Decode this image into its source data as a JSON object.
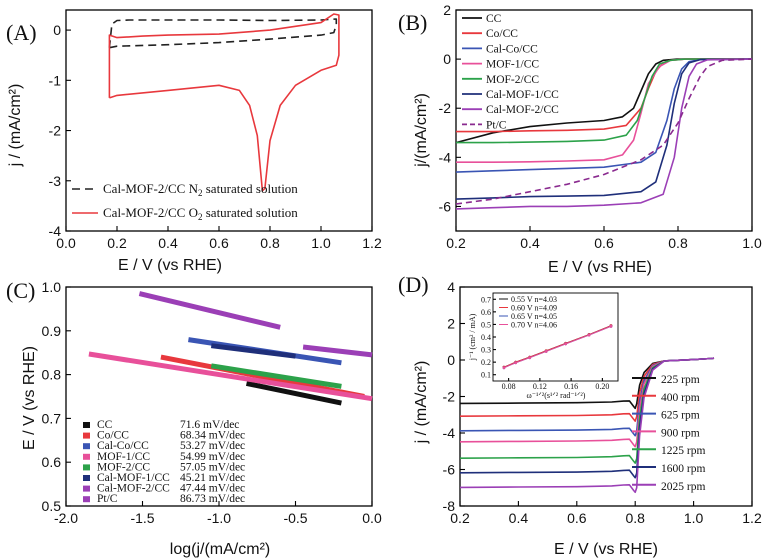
{
  "chart_data": [
    {
      "id": "A",
      "type": "line",
      "panel_label": "(A)",
      "xlabel": "E / V (vs RHE)",
      "ylabel": "j / (mA/cm²)",
      "xlim": [
        0.0,
        1.2
      ],
      "ylim": [
        -4.0,
        0.4
      ],
      "xticks": [
        "0.0",
        "0.2",
        "0.4",
        "0.6",
        "0.8",
        "1.0",
        "1.2"
      ],
      "yticks": [
        "0",
        "-1",
        "-2",
        "-3",
        "-4"
      ],
      "series": [
        {
          "name": "Cal-MOF-2/CC N₂ saturated solution",
          "label_main": "Cal-MOF-2/CC N",
          "label_sub": "2",
          "label_tail": " saturated solution",
          "color": "#222222",
          "dash": "8,5",
          "x": [
            0.17,
            0.2,
            0.4,
            0.6,
            0.8,
            1.0,
            1.05,
            1.06,
            1.06,
            1.0,
            0.8,
            0.6,
            0.4,
            0.25,
            0.2,
            0.18,
            0.17
          ],
          "y": [
            -0.35,
            -0.32,
            -0.29,
            -0.25,
            -0.18,
            -0.1,
            -0.05,
            0.1,
            0.22,
            0.2,
            0.19,
            0.2,
            0.2,
            0.2,
            0.19,
            0.12,
            -0.35
          ]
        },
        {
          "name": "Cal-MOF-2/CC O₂ saturated solution",
          "label_main": "Cal-MOF-2/CC O",
          "label_sub": "2",
          "label_tail": " saturated solution",
          "color": "#e8383d",
          "dash": "",
          "x": [
            0.17,
            0.2,
            0.4,
            0.6,
            0.68,
            0.72,
            0.75,
            0.77,
            0.78,
            0.8,
            0.84,
            0.9,
            1.0,
            1.06,
            1.07,
            1.07,
            1.05,
            1.0,
            0.8,
            0.6,
            0.4,
            0.3,
            0.2,
            0.17,
            0.17
          ],
          "y": [
            -1.35,
            -1.3,
            -1.2,
            -1.1,
            -1.2,
            -1.5,
            -2.1,
            -3.2,
            -3.15,
            -2.2,
            -1.5,
            -1.1,
            -0.8,
            -0.7,
            -0.5,
            0.3,
            0.32,
            0.15,
            0.0,
            -0.08,
            -0.1,
            -0.12,
            -0.15,
            -0.1,
            -1.35
          ]
        }
      ]
    },
    {
      "id": "B",
      "type": "line",
      "panel_label": "(B)",
      "xlabel": "E / V (vs RHE)",
      "ylabel": "j/(mA/cm²)",
      "xlim": [
        0.2,
        1.0
      ],
      "ylim": [
        -7.0,
        2.0
      ],
      "xticks": [
        "0.2",
        "0.4",
        "0.6",
        "0.8",
        "1.0"
      ],
      "yticks": [
        "2",
        "0",
        "-2",
        "-4",
        "-6"
      ],
      "series": [
        {
          "name": "CC",
          "color": "#111111",
          "dash": "",
          "x": [
            0.2,
            0.3,
            0.4,
            0.5,
            0.6,
            0.65,
            0.68,
            0.7,
            0.72,
            0.74,
            0.76,
            0.8,
            0.85,
            1.0
          ],
          "y": [
            -3.4,
            -3.0,
            -2.75,
            -2.6,
            -2.5,
            -2.35,
            -2.0,
            -1.3,
            -0.6,
            -0.2,
            -0.05,
            0.0,
            0.0,
            0.0
          ]
        },
        {
          "name": "Co/CC",
          "color": "#e8383d",
          "dash": "",
          "x": [
            0.2,
            0.3,
            0.4,
            0.5,
            0.6,
            0.66,
            0.7,
            0.72,
            0.74,
            0.76,
            0.78,
            0.82,
            1.0
          ],
          "y": [
            -2.95,
            -2.95,
            -2.92,
            -2.9,
            -2.85,
            -2.7,
            -2.0,
            -1.2,
            -0.5,
            -0.15,
            -0.05,
            0.0,
            0.0
          ]
        },
        {
          "name": "Cal-Co/CC",
          "color": "#3a55b4",
          "dash": "",
          "x": [
            0.2,
            0.3,
            0.4,
            0.5,
            0.6,
            0.7,
            0.74,
            0.77,
            0.79,
            0.81,
            0.83,
            0.86,
            1.0
          ],
          "y": [
            -4.6,
            -4.55,
            -4.5,
            -4.45,
            -4.4,
            -4.2,
            -3.8,
            -2.5,
            -1.2,
            -0.4,
            -0.1,
            -0.02,
            0.0
          ]
        },
        {
          "name": "MOF-1/CC",
          "color": "#e8509a",
          "dash": "",
          "x": [
            0.2,
            0.3,
            0.4,
            0.5,
            0.6,
            0.65,
            0.68,
            0.7,
            0.72,
            0.75,
            0.78,
            0.82,
            1.0
          ],
          "y": [
            -4.2,
            -4.2,
            -4.18,
            -4.15,
            -4.1,
            -3.9,
            -3.3,
            -2.2,
            -1.0,
            -0.3,
            -0.05,
            0.0,
            0.0
          ]
        },
        {
          "name": "MOF-2/CC",
          "color": "#2ca24a",
          "dash": "",
          "x": [
            0.2,
            0.3,
            0.4,
            0.5,
            0.6,
            0.66,
            0.69,
            0.71,
            0.73,
            0.75,
            0.78,
            0.82,
            1.0
          ],
          "y": [
            -3.4,
            -3.4,
            -3.38,
            -3.35,
            -3.3,
            -3.1,
            -2.5,
            -1.6,
            -0.7,
            -0.2,
            -0.05,
            0.0,
            0.0
          ]
        },
        {
          "name": "Cal-MOF-1/CC",
          "color": "#1f2f7a",
          "dash": "",
          "x": [
            0.2,
            0.3,
            0.4,
            0.5,
            0.6,
            0.7,
            0.74,
            0.77,
            0.79,
            0.81,
            0.83,
            0.86,
            1.0
          ],
          "y": [
            -5.7,
            -5.65,
            -5.6,
            -5.58,
            -5.55,
            -5.4,
            -5.0,
            -3.5,
            -1.8,
            -0.6,
            -0.15,
            -0.02,
            0.0
          ]
        },
        {
          "name": "Cal-MOF-2/CC",
          "color": "#9b3fb6",
          "dash": "",
          "x": [
            0.2,
            0.3,
            0.4,
            0.5,
            0.6,
            0.7,
            0.76,
            0.79,
            0.81,
            0.83,
            0.85,
            0.88,
            1.0
          ],
          "y": [
            -6.1,
            -6.05,
            -6.0,
            -6.0,
            -5.95,
            -5.85,
            -5.5,
            -4.0,
            -2.0,
            -0.7,
            -0.2,
            -0.03,
            0.0
          ]
        },
        {
          "name": "Pt/C",
          "color": "#8a2a8f",
          "dash": "6,4",
          "x": [
            0.2,
            0.3,
            0.4,
            0.5,
            0.6,
            0.7,
            0.76,
            0.8,
            0.83,
            0.86,
            0.88,
            0.92,
            1.0
          ],
          "y": [
            -5.9,
            -5.7,
            -5.4,
            -5.1,
            -4.7,
            -4.1,
            -3.5,
            -2.6,
            -1.6,
            -0.7,
            -0.3,
            -0.05,
            0.0
          ]
        }
      ]
    },
    {
      "id": "C",
      "type": "line",
      "panel_label": "(C)",
      "xlabel": "log(j/(mA/cm²)",
      "ylabel": "E / V (vs RHE)",
      "xlim": [
        -2.0,
        0.0
      ],
      "ylim": [
        0.5,
        1.0
      ],
      "xticks": [
        "-2.0",
        "-1.5",
        "-1.0",
        "-0.5",
        "0.0"
      ],
      "yticks": [
        "1.0",
        "0.9",
        "0.8",
        "0.7",
        "0.6",
        "0.5"
      ],
      "series": [
        {
          "name": "CC",
          "slope": "71.6 mV/dec",
          "color": "#111111",
          "x": [
            -0.82,
            -0.2
          ],
          "y": [
            0.78,
            0.735
          ]
        },
        {
          "name": "Co/CC",
          "slope": "68.34 mV/dec",
          "color": "#e8383d",
          "x": [
            -1.38,
            -0.05
          ],
          "y": [
            0.84,
            0.75
          ]
        },
        {
          "name": "Cal-Co/CC",
          "slope": "53.27 mV/dec",
          "color": "#3a55b4",
          "x": [
            -1.2,
            -0.2
          ],
          "y": [
            0.88,
            0.827
          ]
        },
        {
          "name": "MOF-1/CC",
          "slope": "54.99 mV/dec",
          "color": "#e8509a",
          "x": [
            -1.85,
            0.0
          ],
          "y": [
            0.847,
            0.745
          ]
        },
        {
          "name": "MOF-2/CC",
          "slope": "57.05 mV/dec",
          "color": "#2ca24a",
          "x": [
            -1.05,
            -0.2
          ],
          "y": [
            0.82,
            0.773
          ]
        },
        {
          "name": "Cal-MOF-1/CC",
          "slope": "45.21 mV/dec",
          "color": "#1f2f7a",
          "x": [
            -1.05,
            -0.5
          ],
          "y": [
            0.866,
            0.842
          ]
        },
        {
          "name": "Cal-MOF-2/CC",
          "slope": "47.44 mV/dec",
          "color": "#9b3fb6",
          "x": [
            -1.52,
            -0.6
          ],
          "y": [
            0.985,
            0.908
          ]
        },
        {
          "name": "Pt/C",
          "slope": "86.73 mV/dec",
          "color": "#9b3fb6",
          "x": [
            -0.45,
            0.0
          ],
          "y": [
            0.863,
            0.845
          ]
        }
      ]
    },
    {
      "id": "D",
      "type": "line",
      "panel_label": "(D)",
      "xlabel": "E / V (vs RHE)",
      "ylabel": "j / (mA/cm²)",
      "xlim": [
        0.2,
        1.2
      ],
      "ylim": [
        -8.0,
        4.0
      ],
      "xticks": [
        "0.2",
        "0.4",
        "0.6",
        "0.8",
        "1.0",
        "1.2"
      ],
      "yticks": [
        "4",
        "2",
        "0",
        "-2",
        "-4",
        "-6",
        "-8"
      ],
      "series": [
        {
          "name": "225 rpm",
          "color": "#111111",
          "plateau": -2.3
        },
        {
          "name": "400 rpm",
          "color": "#e8383d",
          "plateau": -3.0
        },
        {
          "name": "625 rpm",
          "color": "#3a55b4",
          "plateau": -3.8
        },
        {
          "name": "900 rpm",
          "color": "#e8509a",
          "plateau": -4.4
        },
        {
          "name": "1225 rpm",
          "color": "#2ca24a",
          "plateau": -5.3
        },
        {
          "name": "1600 rpm",
          "color": "#1f2f7a",
          "plateau": -6.1
        },
        {
          "name": "2025 rpm",
          "color": "#9b3fb6",
          "plateau": -6.9
        }
      ],
      "inset": {
        "type": "scatter",
        "ylabel": "j⁻¹ (cm² / mA)",
        "xlabel": "ω⁻¹ᐟ²(s¹ᐟ² rad⁻¹ᐟ²)",
        "xlim": [
          0.06,
          0.22
        ],
        "ylim": [
          0.05,
          0.75
        ],
        "xticks": [
          "0.08",
          "0.12",
          "0.16",
          "0.20"
        ],
        "yticks": [
          "0.7",
          "0.6",
          "0.5",
          "0.4",
          "0.3",
          "0.2",
          "0.1"
        ],
        "x": [
          0.074,
          0.089,
          0.107,
          0.128,
          0.153,
          0.183,
          0.211
        ],
        "series": [
          {
            "name": "0.55 V  n=4.03",
            "color": "#111111",
            "y": [
              0.16,
              0.2,
              0.24,
              0.29,
              0.35,
              0.42,
              0.49
            ]
          },
          {
            "name": "0.60 V  n=4.09",
            "color": "#e8383d",
            "y": [
              0.16,
              0.2,
              0.24,
              0.29,
              0.35,
              0.42,
              0.49
            ]
          },
          {
            "name": "0.65 V  n=4.05",
            "color": "#3a55b4",
            "y": [
              0.155,
              0.195,
              0.235,
              0.285,
              0.345,
              0.415,
              0.485
            ]
          },
          {
            "name": "0.70 V  n=4.06",
            "color": "#e8509a",
            "y": [
              0.155,
              0.195,
              0.235,
              0.285,
              0.345,
              0.415,
              0.485
            ]
          }
        ]
      }
    }
  ]
}
